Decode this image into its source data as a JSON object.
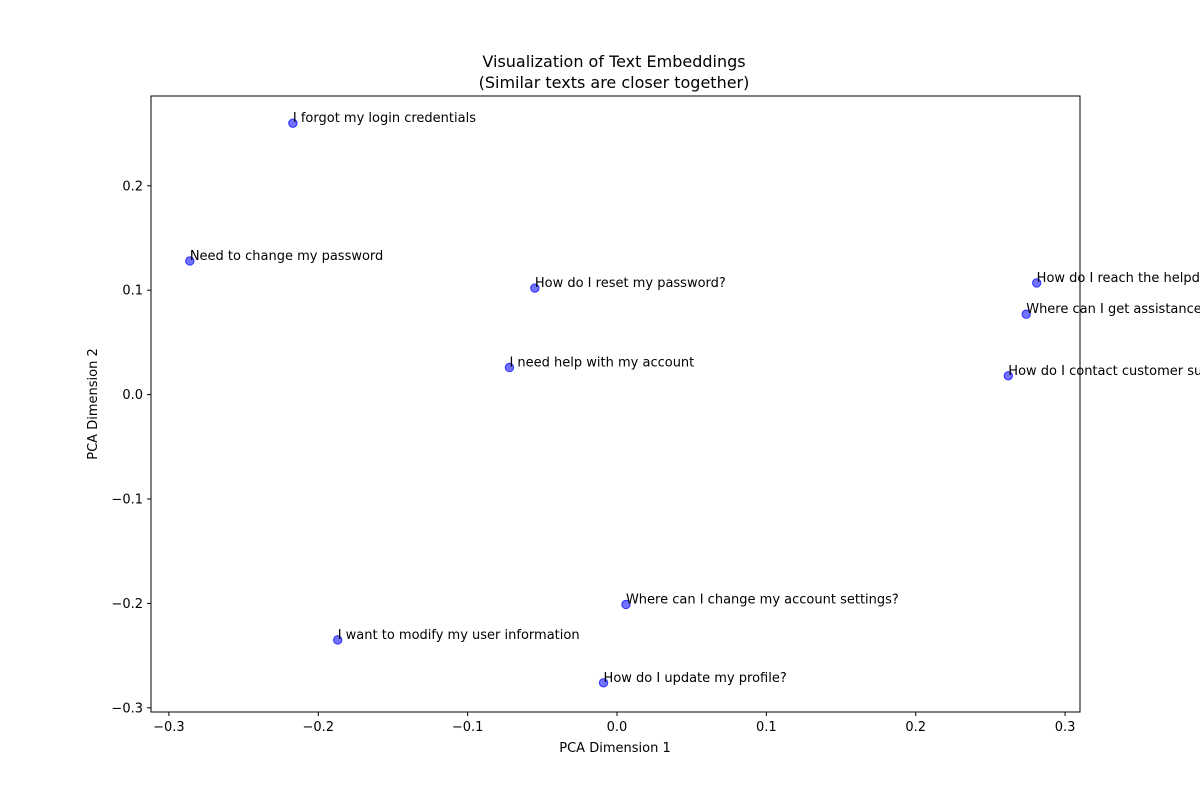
{
  "chart_data": {
    "type": "scatter",
    "title_lines": [
      "Visualization of Text Embeddings",
      "(Similar texts are closer together)"
    ],
    "xlabel": "PCA Dimension 1",
    "ylabel": "PCA Dimension 2",
    "xlim": [
      -0.312,
      0.31
    ],
    "ylim": [
      -0.304,
      0.286
    ],
    "xticks": [
      -0.3,
      -0.2,
      -0.1,
      0.0,
      0.1,
      0.2,
      0.3
    ],
    "xtick_labels": [
      "−0.3",
      "−0.2",
      "−0.1",
      "0.0",
      "0.1",
      "0.2",
      "0.3"
    ],
    "yticks": [
      -0.3,
      -0.2,
      -0.1,
      0.0,
      0.1,
      0.2
    ],
    "ytick_labels": [
      "−0.3",
      "−0.2",
      "−0.1",
      "0.0",
      "0.1",
      "0.2"
    ],
    "grid": false,
    "marker_color": "#0000ff",
    "points": [
      {
        "x": -0.217,
        "y": 0.26,
        "label": "I forgot my login credentials"
      },
      {
        "x": -0.286,
        "y": 0.128,
        "label": "Need to change my password"
      },
      {
        "x": -0.055,
        "y": 0.102,
        "label": "How do I reset my password?"
      },
      {
        "x": -0.072,
        "y": 0.026,
        "label": "I need help with my account"
      },
      {
        "x": 0.281,
        "y": 0.107,
        "label": "How do I reach the helpdesk?"
      },
      {
        "x": 0.274,
        "y": 0.077,
        "label": "Where can I get assistance?"
      },
      {
        "x": 0.262,
        "y": 0.018,
        "label": "How do I contact customer support?"
      },
      {
        "x": 0.006,
        "y": -0.201,
        "label": "Where can I change my account settings?"
      },
      {
        "x": -0.187,
        "y": -0.235,
        "label": "I want to modify my user information"
      },
      {
        "x": -0.009,
        "y": -0.276,
        "label": "How do I update my profile?"
      }
    ]
  }
}
